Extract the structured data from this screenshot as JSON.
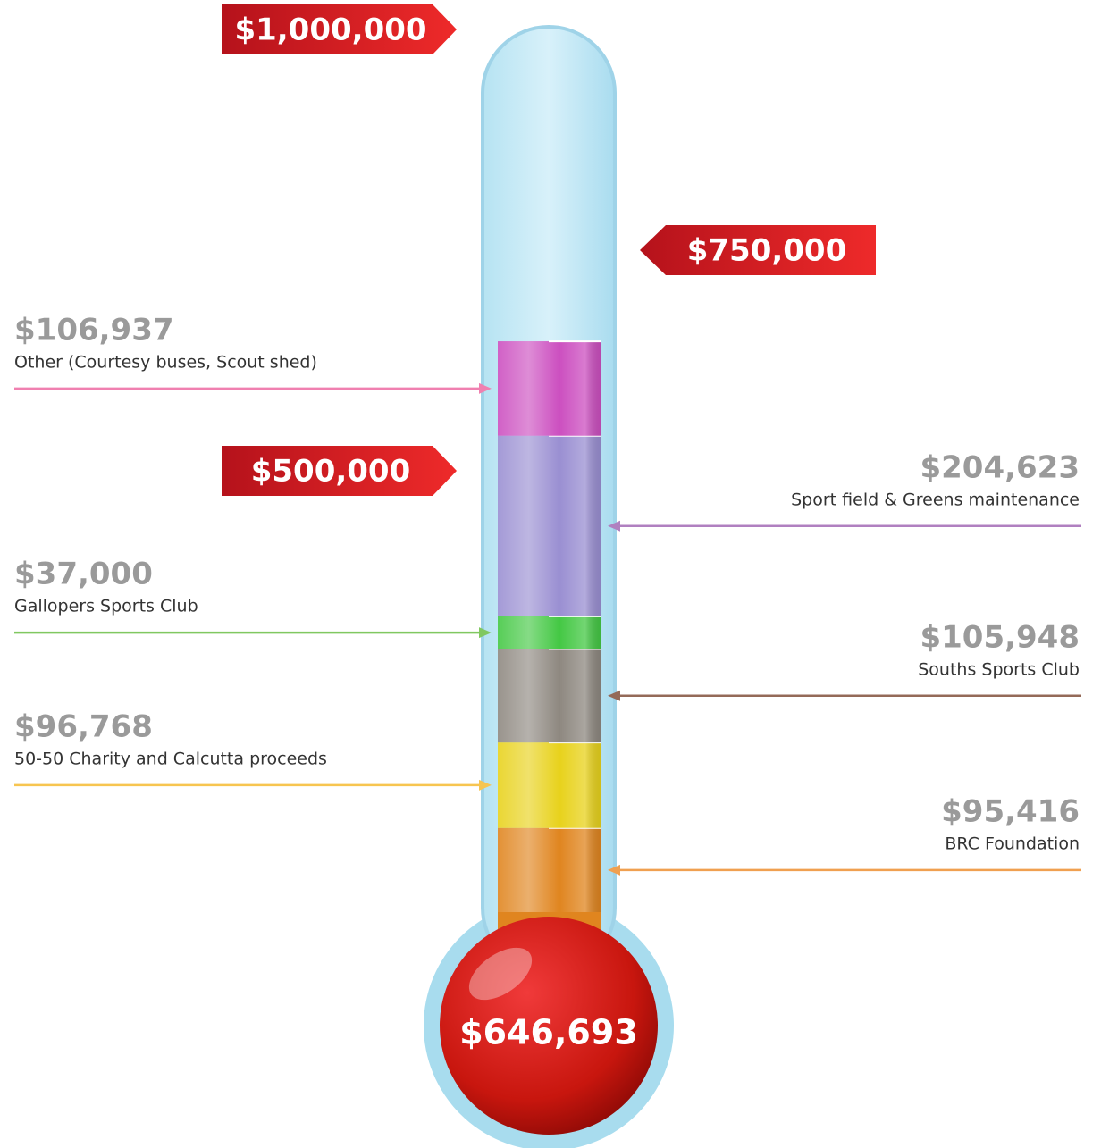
{
  "chart_data": {
    "type": "thermometer",
    "categories": [
      "BRC Foundation",
      "50-50 Charity and Calcutta proceeds",
      "Souths Sports Club",
      "Gallopers Sports Club",
      "Sport field & Greens maintenance",
      "Other (Courtesy buses, Scout shed)"
    ],
    "values": [
      95416,
      96768,
      105948,
      37000,
      204623,
      106937
    ],
    "value_labels": [
      "$95,416",
      "$96,768",
      "$105,948",
      "$37,000",
      "$204,623",
      "$106,937"
    ],
    "colors": [
      "#e0851f",
      "#e8d21c",
      "#8e8880",
      "#44c844",
      "#9a8fd2",
      "#cc4fc0"
    ],
    "arrow_colors": [
      "#f0a050",
      "#f7c550",
      "#946a58",
      "#80c860",
      "#b080c0",
      "#f080b0"
    ],
    "ylim": [
      0,
      1000000
    ],
    "yticks": [
      {
        "value": 500000,
        "label": "$500,000"
      },
      {
        "value": 750000,
        "label": "$750,000"
      },
      {
        "value": 1000000,
        "label": "$1,000,000"
      }
    ],
    "total": {
      "value": 646693,
      "label": "$646,693"
    }
  }
}
